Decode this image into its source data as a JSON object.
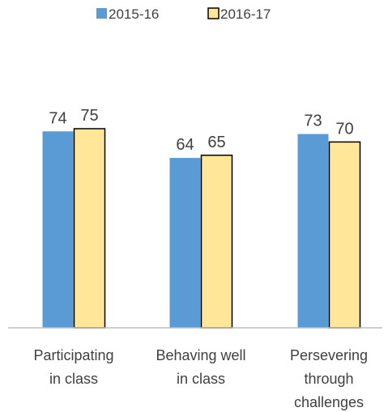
{
  "chart_data": {
    "type": "bar",
    "title": "",
    "xlabel": "",
    "ylabel": "",
    "categories": [
      [
        "Participating",
        "in class"
      ],
      [
        "Behaving well",
        "in class"
      ],
      [
        "Persevering",
        "through",
        "challenges"
      ]
    ],
    "series": [
      {
        "name": "2015-16",
        "values": [
          74,
          64,
          73
        ],
        "color": "#5B9BD5"
      },
      {
        "name": "2016-17",
        "values": [
          75,
          65,
          70
        ],
        "color": "#FFE699"
      }
    ],
    "ylim": [
      0,
      100
    ],
    "grid": false,
    "legend_position": "top",
    "data_labels": true
  }
}
